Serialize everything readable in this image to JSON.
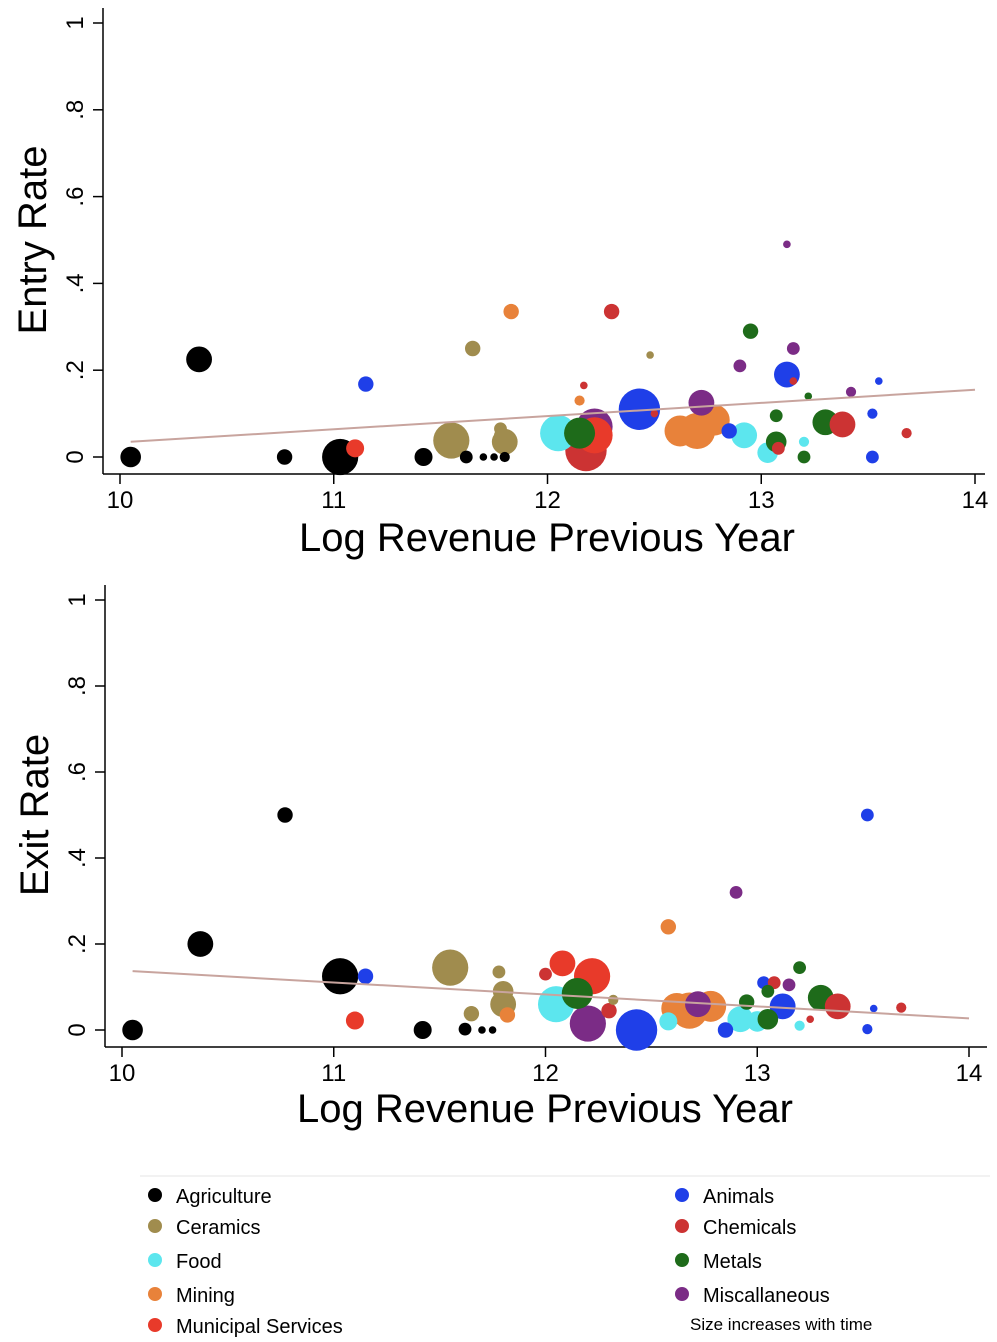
{
  "legend": {
    "placement": "bottom",
    "note": "Size increases with time",
    "items": [
      {
        "label": "Agriculture",
        "color": "#000000"
      },
      {
        "label": "Animals",
        "color": "#1f3fe8"
      },
      {
        "label": "Ceramics",
        "color": "#a08c4e"
      },
      {
        "label": "Chemicals",
        "color": "#cc3333"
      },
      {
        "label": "Food",
        "color": "#5ce6ee"
      },
      {
        "label": "Metals",
        "color": "#1e6b1a"
      },
      {
        "label": "Mining",
        "color": "#e8823a"
      },
      {
        "label": "Miscallaneous",
        "color": "#7b2c86"
      },
      {
        "label": "Municipal Services",
        "color": "#e83a2a"
      }
    ]
  },
  "fit_line_color": "#c8a49e",
  "chart_data": [
    {
      "type": "scatter",
      "title": "",
      "xlabel": "Log Revenue Previous Year",
      "ylabel": "Entry Rate",
      "xlim": [
        10,
        14
      ],
      "ylim": [
        0,
        1
      ],
      "x_ticks": [
        "10",
        "11",
        "12",
        "13",
        "14"
      ],
      "y_ticks": [
        "0",
        ".2",
        ".4",
        ".6",
        ".8",
        "1"
      ],
      "grid": false,
      "marker_size_encodes": "time",
      "fit_line": {
        "x": [
          10.05,
          14.0
        ],
        "y": [
          0.035,
          0.155
        ]
      },
      "points": [
        {
          "series": "Agriculture",
          "x": 10.05,
          "y": 0.0,
          "size": 3
        },
        {
          "series": "Agriculture",
          "x": 10.37,
          "y": 0.225,
          "size": 4
        },
        {
          "series": "Agriculture",
          "x": 10.77,
          "y": 0.0,
          "size": 2
        },
        {
          "series": "Agriculture",
          "x": 11.03,
          "y": 0.0,
          "size": 6
        },
        {
          "series": "Agriculture",
          "x": 11.42,
          "y": 0.0,
          "size": 2.5
        },
        {
          "series": "Agriculture",
          "x": 11.62,
          "y": 0.0,
          "size": 1.5
        },
        {
          "series": "Agriculture",
          "x": 11.7,
          "y": 0.0,
          "size": 0.5
        },
        {
          "series": "Agriculture",
          "x": 11.75,
          "y": 0.0,
          "size": 0.5
        },
        {
          "series": "Agriculture",
          "x": 11.8,
          "y": 0.0,
          "size": 1
        },
        {
          "series": "Municipal Services",
          "x": 11.1,
          "y": 0.02,
          "size": 2.5
        },
        {
          "series": "Animals",
          "x": 11.15,
          "y": 0.168,
          "size": 2
        },
        {
          "series": "Ceramics",
          "x": 11.55,
          "y": 0.038,
          "size": 6
        },
        {
          "series": "Ceramics",
          "x": 11.65,
          "y": 0.25,
          "size": 2
        },
        {
          "series": "Ceramics",
          "x": 11.78,
          "y": 0.05,
          "size": 1.5
        },
        {
          "series": "Ceramics",
          "x": 11.8,
          "y": 0.035,
          "size": 4
        },
        {
          "series": "Ceramics",
          "x": 11.78,
          "y": 0.065,
          "size": 1.5
        },
        {
          "series": "Mining",
          "x": 11.83,
          "y": 0.335,
          "size": 2
        },
        {
          "series": "Mining",
          "x": 12.15,
          "y": 0.13,
          "size": 1
        },
        {
          "series": "Food",
          "x": 12.05,
          "y": 0.055,
          "size": 6
        },
        {
          "series": "Chemicals",
          "x": 12.18,
          "y": 0.015,
          "size": 7
        },
        {
          "series": "Chemicals",
          "x": 12.3,
          "y": 0.335,
          "size": 2
        },
        {
          "series": "Metals",
          "x": 12.15,
          "y": 0.055,
          "size": 5
        },
        {
          "series": "Miscallaneous",
          "x": 12.22,
          "y": 0.07,
          "size": 6
        },
        {
          "series": "Municipal Services",
          "x": 12.22,
          "y": 0.05,
          "size": 6
        },
        {
          "series": "Chemicals",
          "x": 12.17,
          "y": 0.165,
          "size": 0.5
        },
        {
          "series": "Animals",
          "x": 12.43,
          "y": 0.11,
          "size": 7
        },
        {
          "series": "Ceramics",
          "x": 12.48,
          "y": 0.235,
          "size": 0.5
        },
        {
          "series": "Chemicals",
          "x": 12.5,
          "y": 0.1,
          "size": 0.5
        },
        {
          "series": "Mining",
          "x": 12.62,
          "y": 0.06,
          "size": 5
        },
        {
          "series": "Mining",
          "x": 12.7,
          "y": 0.06,
          "size": 6
        },
        {
          "series": "Mining",
          "x": 12.78,
          "y": 0.085,
          "size": 5
        },
        {
          "series": "Miscallaneous",
          "x": 12.72,
          "y": 0.125,
          "size": 4
        },
        {
          "series": "Animals",
          "x": 12.85,
          "y": 0.06,
          "size": 2
        },
        {
          "series": "Food",
          "x": 12.92,
          "y": 0.05,
          "size": 4
        },
        {
          "series": "Food",
          "x": 13.03,
          "y": 0.01,
          "size": 3
        },
        {
          "series": "Miscallaneous",
          "x": 12.9,
          "y": 0.21,
          "size": 1.5
        },
        {
          "series": "Metals",
          "x": 12.95,
          "y": 0.29,
          "size": 2
        },
        {
          "series": "Metals",
          "x": 13.07,
          "y": 0.035,
          "size": 3
        },
        {
          "series": "Metals",
          "x": 13.07,
          "y": 0.095,
          "size": 1.5
        },
        {
          "series": "Animals",
          "x": 13.12,
          "y": 0.19,
          "size": 4
        },
        {
          "series": "Chemicals",
          "x": 13.08,
          "y": 0.02,
          "size": 1.5
        },
        {
          "series": "Miscallaneous",
          "x": 13.12,
          "y": 0.49,
          "size": 0.5
        },
        {
          "series": "Miscallaneous",
          "x": 13.15,
          "y": 0.25,
          "size": 1.5
        },
        {
          "series": "Chemicals",
          "x": 13.15,
          "y": 0.175,
          "size": 0.5
        },
        {
          "series": "Metals",
          "x": 13.2,
          "y": 0.0,
          "size": 1.5
        },
        {
          "series": "Metals",
          "x": 13.22,
          "y": 0.14,
          "size": 0.5
        },
        {
          "series": "Food",
          "x": 13.2,
          "y": 0.035,
          "size": 1
        },
        {
          "series": "Metals",
          "x": 13.3,
          "y": 0.08,
          "size": 4
        },
        {
          "series": "Chemicals",
          "x": 13.38,
          "y": 0.075,
          "size": 4
        },
        {
          "series": "Miscallaneous",
          "x": 13.42,
          "y": 0.15,
          "size": 1
        },
        {
          "series": "Animals",
          "x": 13.52,
          "y": 0.0,
          "size": 1.5
        },
        {
          "series": "Animals",
          "x": 13.52,
          "y": 0.1,
          "size": 1
        },
        {
          "series": "Animals",
          "x": 13.55,
          "y": 0.175,
          "size": 0.5
        },
        {
          "series": "Chemicals",
          "x": 13.68,
          "y": 0.055,
          "size": 1
        }
      ]
    },
    {
      "type": "scatter",
      "title": "",
      "xlabel": "Log Revenue Previous Year",
      "ylabel": "Exit Rate",
      "xlim": [
        10,
        14
      ],
      "ylim": [
        0,
        1
      ],
      "x_ticks": [
        "10",
        "11",
        "12",
        "13",
        "14"
      ],
      "y_ticks": [
        "0",
        ".2",
        ".4",
        ".6",
        ".8",
        "1"
      ],
      "grid": false,
      "marker_size_encodes": "time",
      "fit_line": {
        "x": [
          10.05,
          14.0
        ],
        "y": [
          0.137,
          0.027
        ]
      },
      "points": [
        {
          "series": "Agriculture",
          "x": 10.05,
          "y": 0.0,
          "size": 3
        },
        {
          "series": "Agriculture",
          "x": 10.37,
          "y": 0.2,
          "size": 4
        },
        {
          "series": "Agriculture",
          "x": 10.77,
          "y": 0.5,
          "size": 2
        },
        {
          "series": "Agriculture",
          "x": 11.03,
          "y": 0.125,
          "size": 6
        },
        {
          "series": "Agriculture",
          "x": 11.42,
          "y": 0.0,
          "size": 2.5
        },
        {
          "series": "Agriculture",
          "x": 11.62,
          "y": 0.002,
          "size": 1.5
        },
        {
          "series": "Agriculture",
          "x": 11.7,
          "y": 0.0,
          "size": 0.5
        },
        {
          "series": "Agriculture",
          "x": 11.75,
          "y": 0.0,
          "size": 0.5
        },
        {
          "series": "Animals",
          "x": 11.15,
          "y": 0.125,
          "size": 2
        },
        {
          "series": "Municipal Services",
          "x": 11.1,
          "y": 0.022,
          "size": 2.5
        },
        {
          "series": "Ceramics",
          "x": 11.55,
          "y": 0.145,
          "size": 6
        },
        {
          "series": "Ceramics",
          "x": 11.65,
          "y": 0.038,
          "size": 2
        },
        {
          "series": "Ceramics",
          "x": 11.78,
          "y": 0.135,
          "size": 1.5
        },
        {
          "series": "Ceramics",
          "x": 11.8,
          "y": 0.06,
          "size": 4
        },
        {
          "series": "Ceramics",
          "x": 11.8,
          "y": 0.09,
          "size": 3
        },
        {
          "series": "Mining",
          "x": 11.82,
          "y": 0.035,
          "size": 2
        },
        {
          "series": "Food",
          "x": 12.05,
          "y": 0.06,
          "size": 6
        },
        {
          "series": "Chemicals",
          "x": 12.0,
          "y": 0.13,
          "size": 1.5
        },
        {
          "series": "Municipal Services",
          "x": 12.08,
          "y": 0.155,
          "size": 4
        },
        {
          "series": "Metals",
          "x": 12.15,
          "y": 0.085,
          "size": 5
        },
        {
          "series": "Miscallaneous",
          "x": 12.2,
          "y": 0.015,
          "size": 6
        },
        {
          "series": "Municipal Services",
          "x": 12.22,
          "y": 0.125,
          "size": 6
        },
        {
          "series": "Chemicals",
          "x": 12.3,
          "y": 0.045,
          "size": 2
        },
        {
          "series": "Ceramics",
          "x": 12.32,
          "y": 0.07,
          "size": 1
        },
        {
          "series": "Animals",
          "x": 12.43,
          "y": 0.0,
          "size": 7
        },
        {
          "series": "Mining",
          "x": 12.58,
          "y": 0.24,
          "size": 2
        },
        {
          "series": "Food",
          "x": 12.58,
          "y": 0.02,
          "size": 2.5
        },
        {
          "series": "Mining",
          "x": 12.62,
          "y": 0.05,
          "size": 5
        },
        {
          "series": "Mining",
          "x": 12.68,
          "y": 0.045,
          "size": 6
        },
        {
          "series": "Mining",
          "x": 12.78,
          "y": 0.055,
          "size": 5
        },
        {
          "series": "Miscallaneous",
          "x": 12.72,
          "y": 0.06,
          "size": 4
        },
        {
          "series": "Animals",
          "x": 12.85,
          "y": 0.0,
          "size": 2
        },
        {
          "series": "Miscallaneous",
          "x": 12.9,
          "y": 0.32,
          "size": 1.5
        },
        {
          "series": "Food",
          "x": 12.92,
          "y": 0.025,
          "size": 4
        },
        {
          "series": "Metals",
          "x": 12.95,
          "y": 0.065,
          "size": 2
        },
        {
          "series": "Food",
          "x": 13.0,
          "y": 0.02,
          "size": 3
        },
        {
          "series": "Metals",
          "x": 13.05,
          "y": 0.025,
          "size": 3
        },
        {
          "series": "Animals",
          "x": 13.03,
          "y": 0.11,
          "size": 1.5
        },
        {
          "series": "Chemicals",
          "x": 13.08,
          "y": 0.11,
          "size": 1.5
        },
        {
          "series": "Metals",
          "x": 13.05,
          "y": 0.09,
          "size": 1.5
        },
        {
          "series": "Animals",
          "x": 13.12,
          "y": 0.055,
          "size": 4
        },
        {
          "series": "Miscallaneous",
          "x": 13.15,
          "y": 0.105,
          "size": 1.5
        },
        {
          "series": "Metals",
          "x": 13.2,
          "y": 0.145,
          "size": 1.5
        },
        {
          "series": "Food",
          "x": 13.2,
          "y": 0.01,
          "size": 1
        },
        {
          "series": "Metals",
          "x": 13.3,
          "y": 0.075,
          "size": 4
        },
        {
          "series": "Chemicals",
          "x": 13.38,
          "y": 0.055,
          "size": 4
        },
        {
          "series": "Chemicals",
          "x": 13.25,
          "y": 0.025,
          "size": 0.5
        },
        {
          "series": "Animals",
          "x": 13.52,
          "y": 0.5,
          "size": 1.5
        },
        {
          "series": "Animals",
          "x": 13.52,
          "y": 0.002,
          "size": 1
        },
        {
          "series": "Animals",
          "x": 13.55,
          "y": 0.05,
          "size": 0.5
        },
        {
          "series": "Chemicals",
          "x": 13.68,
          "y": 0.052,
          "size": 1
        }
      ]
    }
  ]
}
